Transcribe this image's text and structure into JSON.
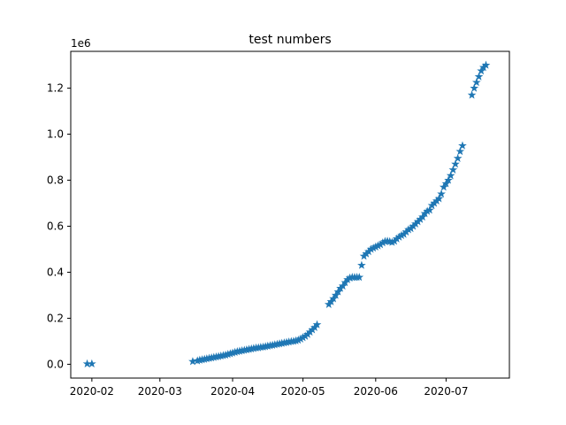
{
  "chart_data": {
    "type": "scatter",
    "title": "test numbers",
    "xlabel": "",
    "ylabel": "",
    "y_scale_label": "1e6",
    "marker": "star",
    "marker_color": "#1f77b4",
    "grid": false,
    "xlim": [
      "2020-01-23",
      "2020-07-28"
    ],
    "ylim": [
      -0.06,
      1.36
    ],
    "x_ticks": [
      "2020-02",
      "2020-03",
      "2020-04",
      "2020-05",
      "2020-06",
      "2020-07"
    ],
    "x_tick_dates": [
      "2020-02-01",
      "2020-03-01",
      "2020-04-01",
      "2020-05-01",
      "2020-06-01",
      "2020-07-01"
    ],
    "y_ticks": [
      "0.0",
      "0.2",
      "0.4",
      "0.6",
      "0.8",
      "1.0",
      "1.2"
    ],
    "y_tick_values": [
      0.0,
      0.2,
      0.4,
      0.6,
      0.8,
      1.0,
      1.2
    ],
    "series": [
      {
        "x": [
          "2020-01-30",
          "2020-02-01",
          "2020-03-15",
          "2020-03-17",
          "2020-03-18",
          "2020-03-19",
          "2020-03-20",
          "2020-03-21",
          "2020-03-22",
          "2020-03-23",
          "2020-03-24",
          "2020-03-25",
          "2020-03-26",
          "2020-03-27",
          "2020-03-28",
          "2020-03-29",
          "2020-03-30",
          "2020-03-31",
          "2020-04-01",
          "2020-04-02",
          "2020-04-03",
          "2020-04-04",
          "2020-04-05",
          "2020-04-06",
          "2020-04-07",
          "2020-04-08",
          "2020-04-09",
          "2020-04-10",
          "2020-04-11",
          "2020-04-12",
          "2020-04-13",
          "2020-04-14",
          "2020-04-15",
          "2020-04-16",
          "2020-04-17",
          "2020-04-18",
          "2020-04-19",
          "2020-04-20",
          "2020-04-21",
          "2020-04-22",
          "2020-04-23",
          "2020-04-24",
          "2020-04-25",
          "2020-04-26",
          "2020-04-27",
          "2020-04-28",
          "2020-04-29",
          "2020-04-30",
          "2020-05-01",
          "2020-05-02",
          "2020-05-03",
          "2020-05-04",
          "2020-05-05",
          "2020-05-06",
          "2020-05-07",
          "2020-05-12",
          "2020-05-13",
          "2020-05-14",
          "2020-05-15",
          "2020-05-16",
          "2020-05-17",
          "2020-05-18",
          "2020-05-19",
          "2020-05-20",
          "2020-05-21",
          "2020-05-22",
          "2020-05-23",
          "2020-05-24",
          "2020-05-25",
          "2020-05-26",
          "2020-05-27",
          "2020-05-28",
          "2020-05-29",
          "2020-05-30",
          "2020-05-31",
          "2020-06-01",
          "2020-06-02",
          "2020-06-03",
          "2020-06-04",
          "2020-06-05",
          "2020-06-06",
          "2020-06-07",
          "2020-06-08",
          "2020-06-09",
          "2020-06-10",
          "2020-06-11",
          "2020-06-12",
          "2020-06-13",
          "2020-06-14",
          "2020-06-15",
          "2020-06-16",
          "2020-06-17",
          "2020-06-18",
          "2020-06-19",
          "2020-06-20",
          "2020-06-21",
          "2020-06-22",
          "2020-06-23",
          "2020-06-24",
          "2020-06-25",
          "2020-06-26",
          "2020-06-27",
          "2020-06-28",
          "2020-06-29",
          "2020-06-30",
          "2020-07-01",
          "2020-07-02",
          "2020-07-03",
          "2020-07-04",
          "2020-07-05",
          "2020-07-06",
          "2020-07-07",
          "2020-07-08",
          "2020-07-12",
          "2020-07-13",
          "2020-07-14",
          "2020-07-15",
          "2020-07-16",
          "2020-07-17",
          "2020-07-18"
        ],
        "y": [
          0.002,
          0.002,
          0.012,
          0.015,
          0.018,
          0.02,
          0.022,
          0.024,
          0.026,
          0.028,
          0.03,
          0.032,
          0.034,
          0.036,
          0.038,
          0.04,
          0.043,
          0.046,
          0.049,
          0.052,
          0.055,
          0.057,
          0.059,
          0.061,
          0.063,
          0.065,
          0.067,
          0.069,
          0.071,
          0.072,
          0.074,
          0.075,
          0.077,
          0.079,
          0.081,
          0.083,
          0.085,
          0.087,
          0.089,
          0.091,
          0.093,
          0.095,
          0.097,
          0.099,
          0.1,
          0.102,
          0.105,
          0.11,
          0.116,
          0.122,
          0.13,
          0.14,
          0.15,
          0.16,
          0.172,
          0.26,
          0.272,
          0.285,
          0.3,
          0.315,
          0.33,
          0.34,
          0.355,
          0.368,
          0.375,
          0.378,
          0.378,
          0.378,
          0.378,
          0.43,
          0.47,
          0.48,
          0.49,
          0.5,
          0.505,
          0.51,
          0.515,
          0.52,
          0.528,
          0.534,
          0.535,
          0.533,
          0.53,
          0.535,
          0.545,
          0.553,
          0.56,
          0.565,
          0.575,
          0.585,
          0.59,
          0.6,
          0.61,
          0.62,
          0.63,
          0.64,
          0.655,
          0.665,
          0.67,
          0.69,
          0.7,
          0.71,
          0.72,
          0.74,
          0.77,
          0.785,
          0.8,
          0.82,
          0.845,
          0.87,
          0.895,
          0.925,
          0.95,
          1.17,
          1.2,
          1.225,
          1.25,
          1.275,
          1.29,
          1.3
        ]
      }
    ]
  }
}
